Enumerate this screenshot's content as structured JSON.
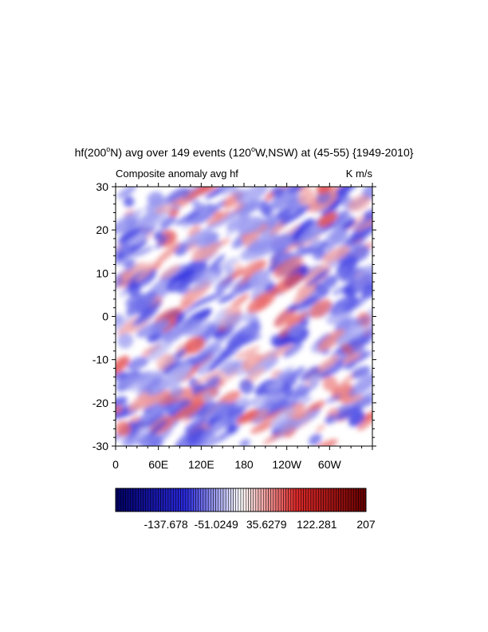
{
  "chart_data": {
    "type": "heatmap",
    "title": "hf(200°N) avg over 149 events (120°W,NSW) at (45-55) {1949-2010}",
    "title_parts": {
      "a": "hf(200",
      "sup1": "o",
      "b": "N) avg over 149 events (120",
      "sup2": "o",
      "c": "W,NSW) at (45-55) {1949-2010}"
    },
    "left_string": "Composite anomaly avg hf",
    "right_string": "K m/s",
    "x_tick_labels": [
      "0",
      "60E",
      "120E",
      "180",
      "120W",
      "60W"
    ],
    "x_ticks_deg": [
      0,
      60,
      120,
      180,
      240,
      300
    ],
    "x_range_deg": [
      0,
      360
    ],
    "y_tick_labels": [
      "30",
      "20",
      "10",
      "0",
      "-10",
      "-20",
      "-30"
    ],
    "y_ticks": [
      30,
      20,
      10,
      0,
      -10,
      -20,
      -30
    ],
    "y_range": [
      -30,
      30
    ],
    "colorbar": {
      "labels": [
        "-137.678",
        "-51.0249",
        "35.6279",
        "122.281",
        "207"
      ],
      "min": -224.33,
      "max": 207,
      "n_colors": 100,
      "colormap": "BlueWhiteRed",
      "colors": {
        "low": "#000066",
        "mid_low": "#2a2ae0",
        "white": "#ffffff",
        "mid_high": "#e02a2a",
        "high": "#660000"
      }
    },
    "field_description": "weak mostly-blue anomalies, values near zero"
  }
}
